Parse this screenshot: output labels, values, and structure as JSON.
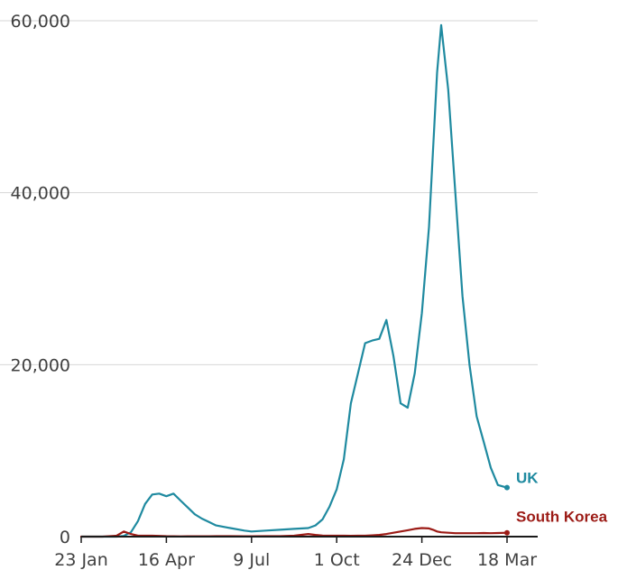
{
  "chart_data": {
    "type": "line",
    "title": "",
    "xlabel": "",
    "ylabel": "",
    "x_ticks": [
      "23 Jan",
      "16 Apr",
      "9 Jul",
      "1 Oct",
      "24 Dec",
      "18 Mar"
    ],
    "y_ticks": [
      "0",
      "20,000",
      "40,000",
      "60,000"
    ],
    "ylim": [
      0,
      60000
    ],
    "grid": true,
    "x": [
      "23 Jan",
      "13 Feb",
      "27 Feb",
      "5 Mar",
      "12 Mar",
      "19 Mar",
      "26 Mar",
      "2 Apr",
      "9 Apr",
      "16 Apr",
      "23 Apr",
      "30 Apr",
      "7 May",
      "14 May",
      "21 May",
      "28 May",
      "4 Jun",
      "18 Jun",
      "2 Jul",
      "9 Jul",
      "23 Jul",
      "6 Aug",
      "20 Aug",
      "3 Sep",
      "10 Sep",
      "17 Sep",
      "24 Sep",
      "1 Oct",
      "8 Oct",
      "15 Oct",
      "22 Oct",
      "29 Oct",
      "5 Nov",
      "12 Nov",
      "19 Nov",
      "26 Nov",
      "3 Dec",
      "10 Dec",
      "17 Dec",
      "24 Dec",
      "31 Dec",
      "4 Jan",
      "8 Jan",
      "12 Jan",
      "19 Jan",
      "26 Jan",
      "2 Feb",
      "9 Feb",
      "16 Feb",
      "23 Feb",
      "2 Mar",
      "9 Mar",
      "18 Mar"
    ],
    "series": [
      {
        "name": "UK",
        "color": "#1f8aa0",
        "values": [
          0,
          0,
          0,
          80,
          500,
          1800,
          3800,
          4900,
          5000,
          4700,
          5000,
          4200,
          3400,
          2600,
          2100,
          1700,
          1300,
          1000,
          700,
          600,
          700,
          800,
          900,
          1000,
          1300,
          2000,
          3500,
          5500,
          9000,
          15500,
          19000,
          22500,
          22800,
          23000,
          25200,
          21000,
          15500,
          15000,
          19000,
          26000,
          36000,
          45000,
          54000,
          59500,
          52000,
          40000,
          28000,
          20000,
          14000,
          11000,
          8000,
          6000,
          5700
        ]
      },
      {
        "name": "South Korea",
        "color": "#9c1b16",
        "values": [
          0,
          0,
          100,
          600,
          300,
          100,
          100,
          100,
          80,
          50,
          40,
          30,
          40,
          40,
          40,
          40,
          50,
          50,
          40,
          40,
          50,
          50,
          100,
          300,
          200,
          120,
          100,
          100,
          100,
          90,
          100,
          110,
          150,
          200,
          300,
          450,
          600,
          750,
          900,
          1000,
          950,
          800,
          600,
          500,
          450,
          400,
          400,
          400,
          400,
          420,
          400,
          420,
          450
        ]
      }
    ]
  }
}
